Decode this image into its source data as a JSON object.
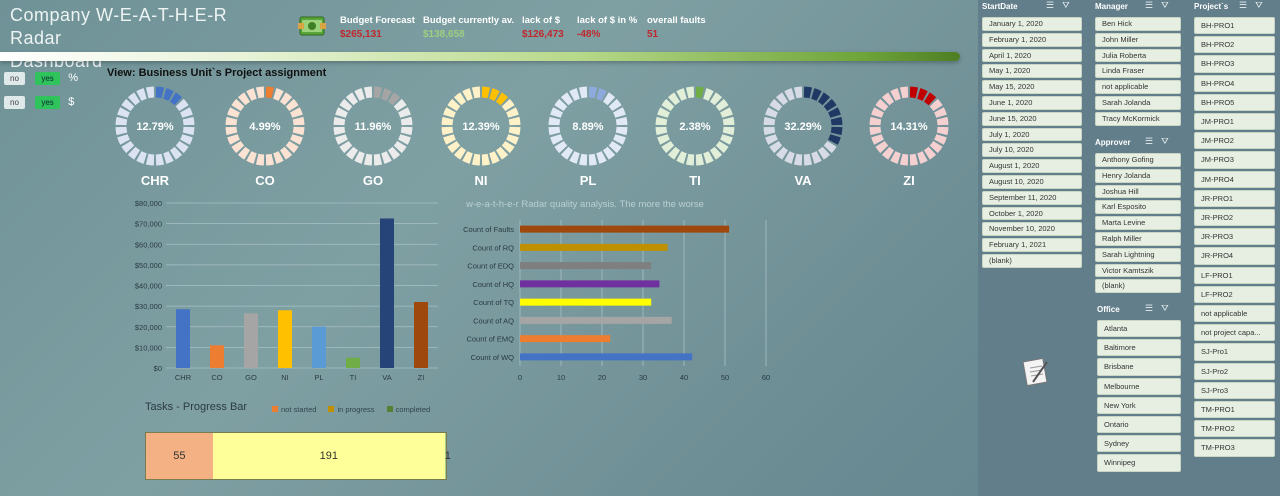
{
  "header": {
    "title_line1": "Company W-E-A-T-H-E-R Radar",
    "title_line2": "Dashboard",
    "kpis": [
      {
        "label": "Budget Forecast",
        "value": "$265,131",
        "color": "#c0282d"
      },
      {
        "label": "Budget currently av.",
        "value": "$138,658",
        "color": "#9ccf80"
      },
      {
        "label": "lack of $",
        "value": "$126,473",
        "color": "#c0282d"
      },
      {
        "label": "lack of $ in %",
        "value": "-48%",
        "color": "#c0282d"
      },
      {
        "label": "overall faults",
        "value": "51",
        "color": "#c0282d"
      }
    ]
  },
  "toggles": [
    {
      "no": "no",
      "yes": "yes",
      "unit": "%"
    },
    {
      "no": "no",
      "yes": "yes",
      "unit": "$"
    }
  ],
  "view_title": "View: Business Unit`s Project assignment",
  "donuts": [
    {
      "name": "CHR",
      "pct": "12.79%",
      "fraction": 0.1279,
      "color": "#4472c4",
      "light": "#dbe3f3"
    },
    {
      "name": "CO",
      "pct": "4.99%",
      "fraction": 0.0499,
      "color": "#ed7d31",
      "light": "#fbe2d2"
    },
    {
      "name": "GO",
      "pct": "11.96%",
      "fraction": 0.1196,
      "color": "#a5a5a5",
      "light": "#ebebeb"
    },
    {
      "name": "NI",
      "pct": "12.39%",
      "fraction": 0.1239,
      "color": "#ffc000",
      "light": "#fff1c8"
    },
    {
      "name": "PL",
      "pct": "8.89%",
      "fraction": 0.0889,
      "color": "#8ea9db",
      "light": "#e2e9f6"
    },
    {
      "name": "TI",
      "pct": "2.38%",
      "fraction": 0.0238,
      "color": "#70ad47",
      "light": "#e1eed8"
    },
    {
      "name": "VA",
      "pct": "32.29%",
      "fraction": 0.3229,
      "color": "#1f3864",
      "light": "#d6dbe6"
    },
    {
      "name": "ZI",
      "pct": "14.31%",
      "fraction": 0.1431,
      "color": "#c00000",
      "light": "#f5d0d0"
    }
  ],
  "chart_data": [
    {
      "type": "bar",
      "categories": [
        "CHR",
        "CO",
        "GO",
        "NI",
        "PL",
        "TI",
        "VA",
        "ZI"
      ],
      "values": [
        28500,
        11000,
        26500,
        28000,
        20000,
        5000,
        72500,
        32000
      ],
      "colors": [
        "#4472c4",
        "#ed7d31",
        "#a5a5a5",
        "#ffc000",
        "#5b9bd5",
        "#70ad47",
        "#264478",
        "#9e480e"
      ],
      "yticks": [
        "$0",
        "$10,000",
        "$20,000",
        "$30,000",
        "$40,000",
        "$50,000",
        "$60,000",
        "$70,000",
        "$80,000"
      ],
      "ylim": [
        0,
        80000
      ],
      "grid": true
    },
    {
      "type": "bar",
      "orientation": "horizontal",
      "title": "w-e-a-t-h-e-r Radar quality analysis. The more the worse",
      "categories": [
        "Count of Faults",
        "Count of RQ",
        "Count of EDQ",
        "Count of HQ",
        "Count of TQ",
        "Count of AQ",
        "Count of EMQ",
        "Count of WQ"
      ],
      "values": [
        51,
        36,
        32,
        34,
        32,
        37,
        22,
        42
      ],
      "colors": [
        "#9e480e",
        "#bf9000",
        "#7f7f7f",
        "#7030a0",
        "#ffff00",
        "#a5a5a5",
        "#ed7d31",
        "#4472c4"
      ],
      "xticks": [
        "0",
        "10",
        "20",
        "30",
        "40",
        "50",
        "60"
      ],
      "xlim": [
        0,
        60
      ],
      "grid": true
    },
    {
      "type": "bar",
      "orientation": "horizontal-stacked",
      "title": "Tasks - Progress Bar",
      "legend": [
        "not started",
        "in progress",
        "completed"
      ],
      "legend_colors": [
        "#ed7d31",
        "#bf9000",
        "#548235"
      ],
      "series": [
        {
          "name": "not started",
          "values": [
            55
          ],
          "color": "#f4b183"
        },
        {
          "name": "in progress",
          "values": [
            191
          ],
          "color": "#ffff99"
        },
        {
          "name": "completed",
          "values": [
            1
          ],
          "color": "#a9d18e"
        }
      ]
    }
  ],
  "slicers": {
    "startdate": {
      "title": "StartDate",
      "items": [
        "January 1, 2020",
        "February 1, 2020",
        "April 1, 2020",
        "May 1, 2020",
        "May 15, 2020",
        "June 1, 2020",
        "June 15, 2020",
        "July 1, 2020",
        "July 10, 2020",
        "August 1, 2020",
        "August 10, 2020",
        "September 11, 2020",
        "October 1, 2020",
        "November 10, 2020",
        "February 1, 2021",
        "(blank)"
      ]
    },
    "manager": {
      "title": "Manager",
      "items": [
        "Ben Hick",
        "John Miller",
        "Julia Roberta",
        "Linda Fraser",
        "not applicable",
        "Sarah Jolanda",
        "Tracy McKormick"
      ]
    },
    "approver": {
      "title": "Approver",
      "items": [
        "Anthony Gofing",
        "Henry Jolanda",
        "Joshua Hill",
        "Karl Esposito",
        "Marta Levine",
        "Ralph Miller",
        "Sarah Lightning",
        "Victor Kamtszik",
        "(blank)"
      ]
    },
    "office": {
      "title": "Office",
      "items": [
        "Atlanta",
        "Baltimore",
        "Brisbane",
        "Melbourne",
        "New York",
        "Ontario",
        "Sydney",
        "Winnipeg"
      ]
    },
    "projects": {
      "title": "Project`s",
      "items": [
        "BH-PRO1",
        "BH-PRO2",
        "BH-PRO3",
        "BH-PRO4",
        "BH-PRO5",
        "JM-PRO1",
        "JM-PRO2",
        "JM-PRO3",
        "JM-PRO4",
        "JR-PRO1",
        "JR-PRO2",
        "JR-PRO3",
        "JR-PRO4",
        "LF-PRO1",
        "LF-PRO2",
        "not applicable",
        "not project capa...",
        "SJ-Pro1",
        "SJ-Pro2",
        "SJ-Pro3",
        "TM-PRO1",
        "TM-PRO2",
        "TM-PRO3"
      ]
    }
  }
}
